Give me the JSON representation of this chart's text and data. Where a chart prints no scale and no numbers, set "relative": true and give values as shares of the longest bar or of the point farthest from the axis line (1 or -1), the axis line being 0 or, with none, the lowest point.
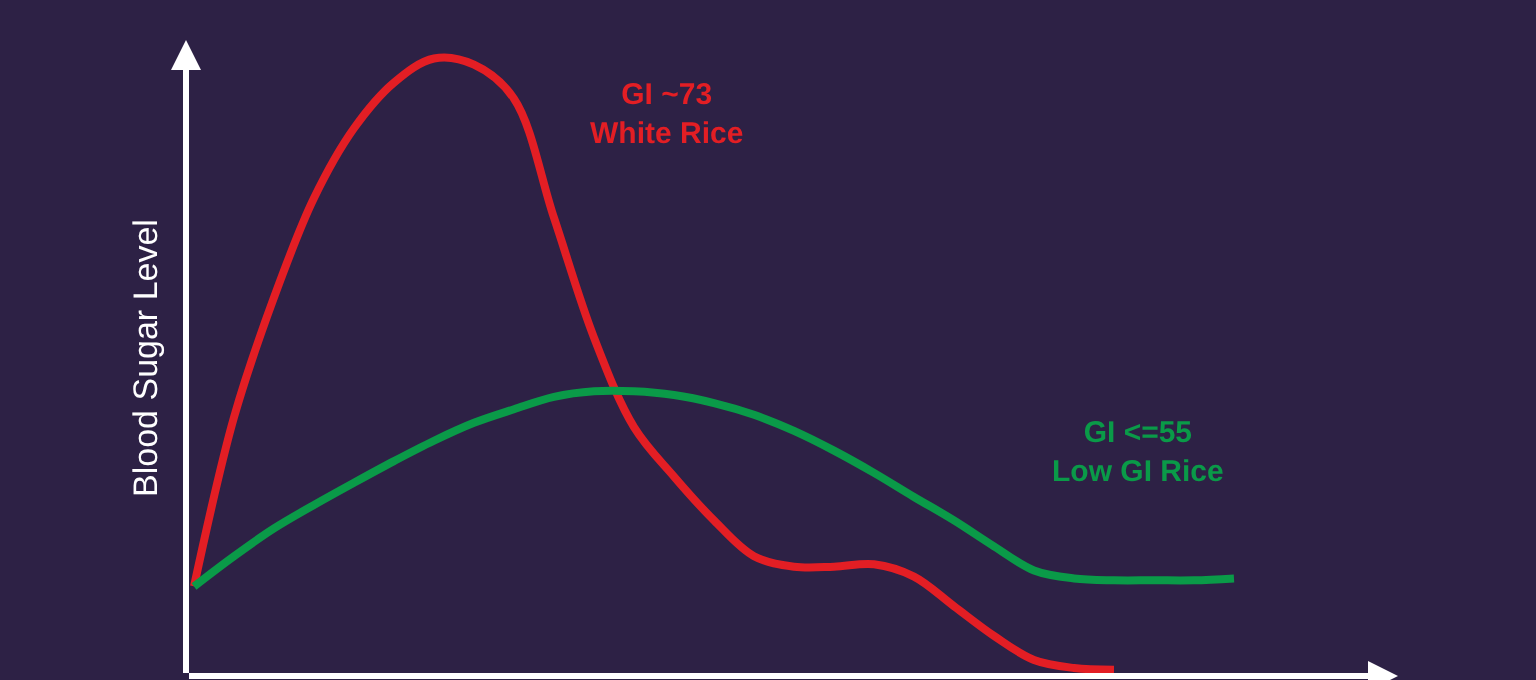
{
  "chart_data": {
    "type": "line",
    "relative": true,
    "ylabel": "Blood Sugar Level",
    "categories": [
      null,
      null,
      null,
      null,
      null,
      null,
      null,
      null,
      null,
      null,
      null,
      null,
      null,
      null,
      null,
      null,
      null,
      null,
      null,
      null,
      null,
      null,
      null,
      null,
      null,
      null,
      null
    ],
    "series": [
      {
        "name": "GI ~73\nWhite Rice",
        "color": "#e31e24",
        "values": [
          0.145,
          0.419,
          0.613,
          0.774,
          0.887,
          0.961,
          1.0,
          0.99,
          0.935,
          0.742,
          0.548,
          0.403,
          0.323,
          0.252,
          0.194,
          0.177,
          0.177,
          0.181,
          0.161,
          0.113,
          0.065,
          0.026,
          0.013,
          0.01,
          null,
          null,
          null
        ]
      },
      {
        "name": "GI <=55\nLow GI Rice",
        "color": "#0a9a48",
        "values": [
          0.145,
          0.194,
          0.239,
          0.277,
          0.313,
          0.348,
          0.381,
          0.41,
          0.432,
          0.452,
          0.461,
          0.461,
          0.455,
          0.442,
          0.423,
          0.397,
          0.365,
          0.329,
          0.29,
          0.252,
          0.21,
          0.171,
          0.158,
          0.155,
          0.155,
          0.155,
          0.158
        ]
      }
    ]
  }
}
